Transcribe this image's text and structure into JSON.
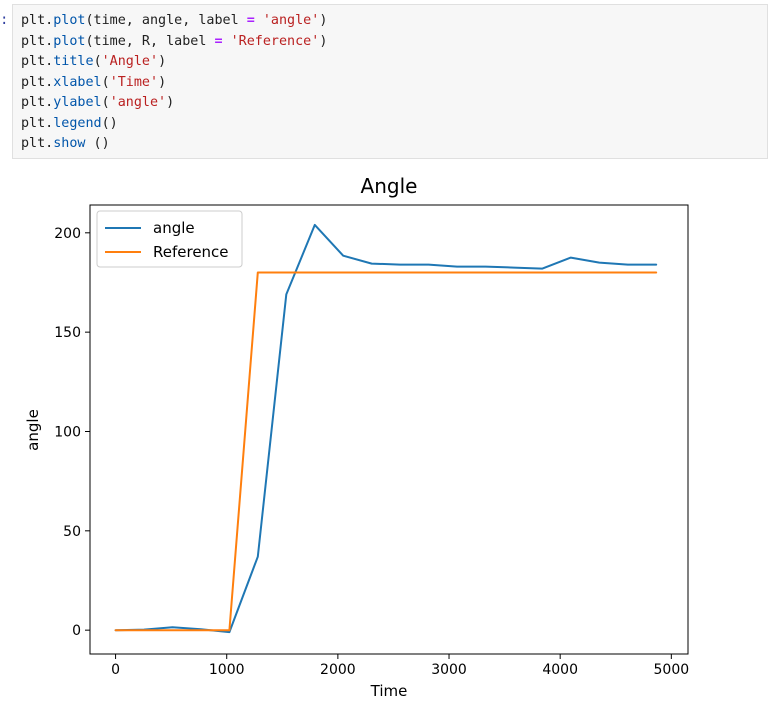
{
  "notebook": {
    "prompt_marker": ":",
    "code_lines": [
      "plt.plot(time, angle, label = 'angle')",
      "plt.plot(time, R, label = 'Reference')",
      "plt.title('Angle')",
      "plt.xlabel('Time')",
      "plt.ylabel('angle')",
      "plt.legend()",
      "plt.show ()"
    ]
  },
  "colors": {
    "series_angle": "#1f77b4",
    "series_reference": "#ff7f0e",
    "code_function": "#0055aa",
    "code_string": "#ba2121",
    "code_operator": "#aa22ff"
  },
  "chart_data": {
    "type": "line",
    "title": "Angle",
    "xlabel": "Time",
    "ylabel": "angle",
    "xlim": [
      -230,
      5150
    ],
    "ylim": [
      -12,
      214
    ],
    "xticks": [
      0,
      1000,
      2000,
      3000,
      4000,
      5000
    ],
    "yticks": [
      0,
      50,
      100,
      150,
      200
    ],
    "grid": false,
    "legend_position": "top-left",
    "series": [
      {
        "name": "angle",
        "color": "#1f77b4",
        "x": [
          0,
          256,
          512,
          768,
          1024,
          1280,
          1536,
          1792,
          2048,
          2304,
          2560,
          2816,
          3072,
          3328,
          3584,
          3840,
          4096,
          4352,
          4608,
          4864
        ],
        "y": [
          0,
          0.3,
          1.5,
          0.5,
          -1,
          37,
          169,
          204,
          188.5,
          184.5,
          184,
          184,
          183,
          183,
          182.5,
          182,
          187.5,
          185,
          184,
          184
        ]
      },
      {
        "name": "Reference",
        "color": "#ff7f0e",
        "x": [
          0,
          256,
          512,
          768,
          1024,
          1280,
          1536,
          1792,
          2048,
          2304,
          2560,
          2816,
          3072,
          3328,
          3584,
          3840,
          4096,
          4352,
          4608,
          4864
        ],
        "y": [
          0,
          0,
          0,
          0,
          0,
          180,
          180,
          180,
          180,
          180,
          180,
          180,
          180,
          180,
          180,
          180,
          180,
          180,
          180,
          180
        ]
      }
    ]
  }
}
